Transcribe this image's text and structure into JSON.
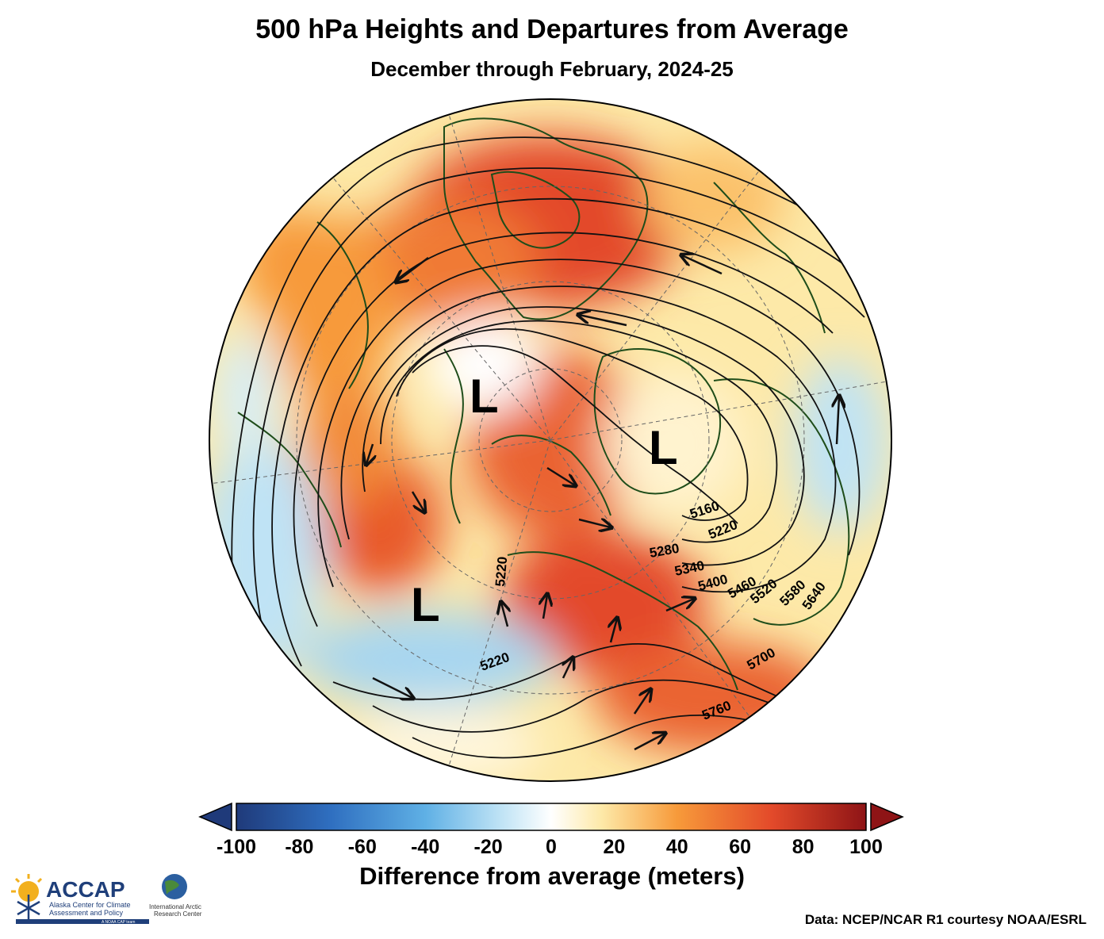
{
  "title": "500 hPa Heights and Departures from Average",
  "subtitle": "December through February, 2024-25",
  "contour_labels": [
    "5160",
    "5220",
    "5220",
    "5220",
    "5280",
    "5340",
    "5400",
    "5460",
    "5520",
    "5580",
    "5640",
    "5700",
    "5760"
  ],
  "low_marker": "L",
  "colorbar": {
    "label": "Difference from average (meters)",
    "ticks": [
      "-100",
      "-80",
      "-60",
      "-40",
      "-20",
      "0",
      "20",
      "40",
      "60",
      "80",
      "100"
    ],
    "min": -100,
    "max": 100
  },
  "credit": "Data: NCEP/NCAR R1 courtesy NOAA/ESRL",
  "logo": {
    "name": "ACCAP",
    "line1": "Alaska Center for Climate",
    "line2": "Assessment and Policy",
    "tag": "A NOAA CAP team",
    "partner1": "International Arctic",
    "partner2": "Research Center"
  },
  "colors": {
    "neg_dark": "#1f3a7a",
    "neg_mid": "#3a8fd6",
    "neg_light": "#bfe3f5",
    "neutral": "#ffffff",
    "pos_light": "#fde9a8",
    "pos_mid": "#f79a3a",
    "pos_strong": "#e34a2a",
    "pos_dark": "#8e1416",
    "land": "#1f4d1a"
  }
}
